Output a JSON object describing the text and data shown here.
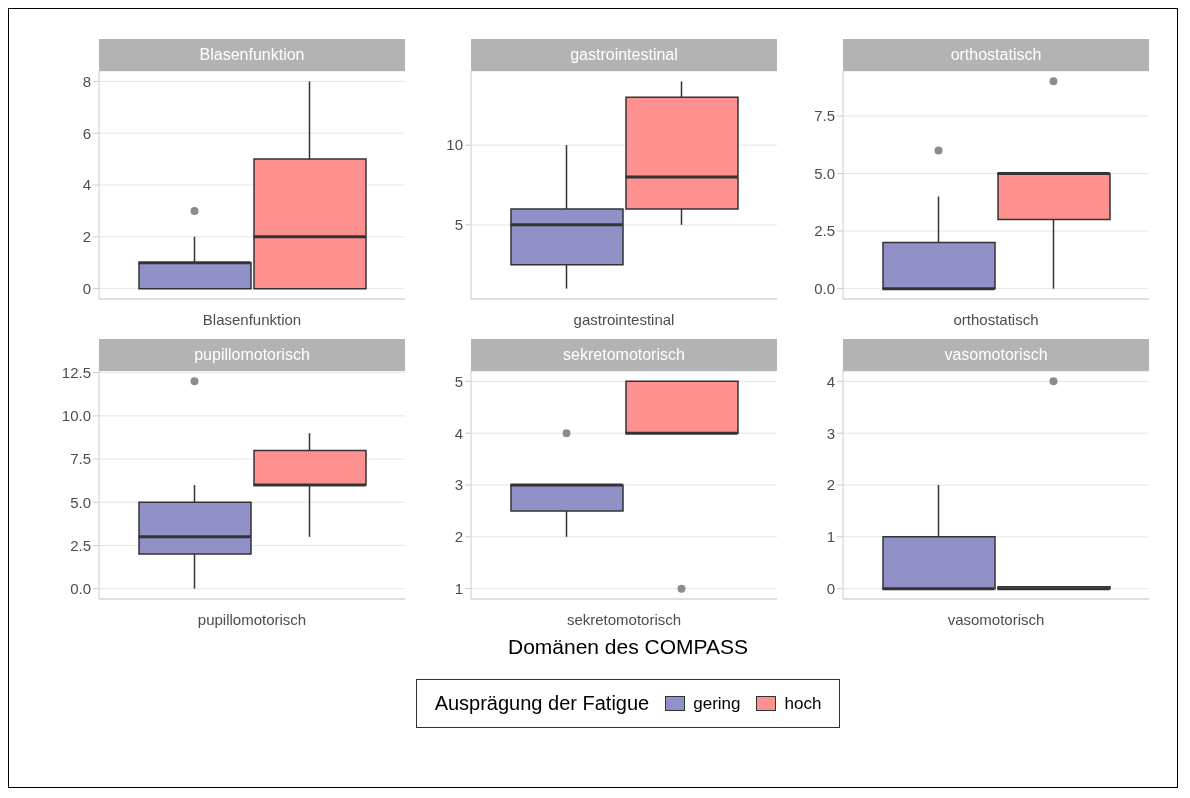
{
  "chart_data": [
    {
      "type": "box",
      "title": "Blasenfunktion",
      "xlabel": "Blasenfunktion",
      "categories": [
        null,
        null
      ],
      "ylim": [
        -0.4,
        8.4
      ],
      "yticks": [
        0,
        2,
        4,
        6,
        8
      ],
      "grid": "y",
      "series": [
        {
          "color": "#9191c8",
          "boxes": [
            {
              "low": 0,
              "q1": 0,
              "median": 1,
              "q3": 1,
              "high": 2,
              "outliers": [
                3
              ]
            },
            null
          ]
        },
        {
          "color": "#ff9090",
          "boxes": [
            null,
            {
              "low": 0,
              "q1": 0,
              "median": 2,
              "q3": 5,
              "high": 8
            }
          ]
        }
      ]
    },
    {
      "type": "box",
      "title": "gastrointestinal",
      "xlabel": "gastrointestinal",
      "categories": [
        null,
        null
      ],
      "ylim": [
        0.35,
        14.65
      ],
      "yticks": [
        5,
        10
      ],
      "grid": "y",
      "series": [
        {
          "color": "#9191c8",
          "boxes": [
            {
              "low": 1,
              "q1": 2.5,
              "median": 5,
              "q3": 6,
              "high": 10
            },
            null
          ]
        },
        {
          "color": "#ff9090",
          "boxes": [
            null,
            {
              "low": 5,
              "q1": 6,
              "median": 8,
              "q3": 13,
              "high": 14
            }
          ]
        }
      ]
    },
    {
      "type": "box",
      "title": "orthostatisch",
      "xlabel": "orthostatisch",
      "categories": [
        null,
        null
      ],
      "ylim": [
        -0.45,
        9.45
      ],
      "yticks": [
        {
          "value": 0,
          "label": "0.0"
        },
        {
          "value": 2.5,
          "label": "2.5"
        },
        {
          "value": 5,
          "label": "5.0"
        },
        {
          "value": 7.5,
          "label": "7.5"
        }
      ],
      "grid": "y",
      "series": [
        {
          "color": "#9191c8",
          "boxes": [
            {
              "low": 0,
              "q1": 0,
              "median": 0,
              "q3": 2,
              "high": 4,
              "outliers": [
                6
              ]
            },
            null
          ]
        },
        {
          "color": "#ff9090",
          "boxes": [
            null,
            {
              "low": 0,
              "q1": 3,
              "median": 5,
              "q3": 5,
              "high": 5,
              "outliers": [
                9
              ]
            }
          ]
        }
      ]
    },
    {
      "type": "box",
      "title": "pupillomotorisch",
      "xlabel": "pupillomotorisch",
      "categories": [
        null,
        null
      ],
      "ylim": [
        -0.6,
        12.6
      ],
      "yticks": [
        {
          "value": 0,
          "label": "0.0"
        },
        {
          "value": 2.5,
          "label": "2.5"
        },
        {
          "value": 5,
          "label": "5.0"
        },
        {
          "value": 7.5,
          "label": "7.5"
        },
        {
          "value": 10,
          "label": "10.0"
        },
        {
          "value": 12.5,
          "label": "12.5"
        }
      ],
      "grid": "y",
      "series": [
        {
          "color": "#9191c8",
          "boxes": [
            {
              "low": 0,
              "q1": 2,
              "median": 3,
              "q3": 5,
              "high": 6,
              "outliers": [
                12
              ]
            },
            null
          ]
        },
        {
          "color": "#ff9090",
          "boxes": [
            null,
            {
              "low": 3,
              "q1": 6,
              "median": 6,
              "q3": 8,
              "high": 9
            }
          ]
        }
      ]
    },
    {
      "type": "box",
      "title": "sekretomotorisch",
      "xlabel": "sekretomotorisch",
      "categories": [
        null,
        null
      ],
      "annotations": [
        "Domänen des COMPASS"
      ],
      "legend": "bottom",
      "legend_title": "Ausprägung der Fatigue",
      "ylim": [
        0.8,
        5.2
      ],
      "yticks": [
        1,
        2,
        3,
        4,
        5
      ],
      "grid": "y",
      "series": [
        {
          "name": "gering",
          "color": "#9191c8",
          "boxes": [
            {
              "low": 2,
              "q1": 2.5,
              "median": 3,
              "q3": 3,
              "high": 3,
              "outliers": [
                4
              ]
            },
            null
          ]
        },
        {
          "name": "hoch",
          "color": "#ff9090",
          "boxes": [
            null,
            {
              "low": 4,
              "q1": 4,
              "median": 4,
              "q3": 5,
              "high": 5,
              "outliers": [
                1
              ]
            }
          ]
        }
      ]
    },
    {
      "type": "box",
      "title": "vasomotorisch",
      "xlabel": "vasomotorisch",
      "categories": [
        null,
        null
      ],
      "ylim": [
        -0.2,
        4.2
      ],
      "yticks": [
        0,
        1,
        2,
        3,
        4
      ],
      "grid": "y",
      "series": [
        {
          "color": "#9191c8",
          "boxes": [
            {
              "low": 0,
              "q1": 0,
              "median": 0,
              "q3": 1,
              "high": 2
            },
            null
          ]
        },
        {
          "color": "#ff9090",
          "boxes": [
            null,
            {
              "low": 0,
              "q1": 0,
              "median": 0,
              "q3": 0,
              "high": 0,
              "outliers": [
                4
              ]
            }
          ]
        }
      ]
    }
  ]
}
